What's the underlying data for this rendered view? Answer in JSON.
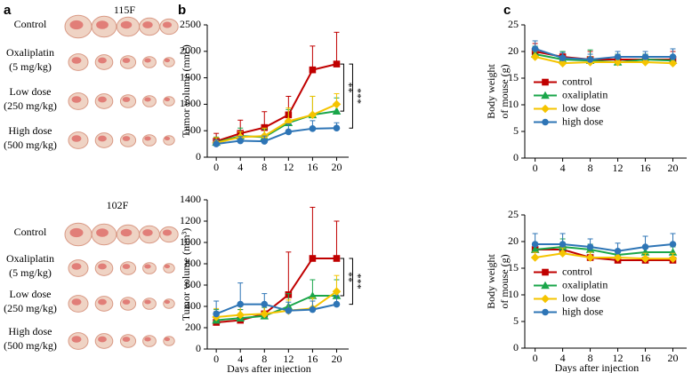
{
  "panel_labels": [
    "a",
    "b",
    "c"
  ],
  "photos": [
    {
      "title": "115F",
      "rows": [
        [
          "Control"
        ],
        [
          "Oxaliplatin",
          "(5 mg/kg)"
        ],
        [
          "Low dose",
          "(250 mg/kg)"
        ],
        [
          "High dose",
          "(500 mg/kg)"
        ]
      ]
    },
    {
      "title": "102F",
      "rows": [
        [
          "Control"
        ],
        [
          "Oxaliplatin",
          "(5 mg/kg)"
        ],
        [
          "Low dose",
          "(250 mg/kg)"
        ],
        [
          "High dose",
          "(500 mg/kg)"
        ]
      ]
    }
  ],
  "chart_data": [
    {
      "type": "line",
      "ylabel": [
        "Tumor volume (mm³)"
      ],
      "x": [
        0,
        4,
        8,
        12,
        16,
        20
      ],
      "xlim": [
        -1.5,
        22
      ],
      "xticks": [
        0,
        4,
        8,
        12,
        16,
        20
      ],
      "ylim": [
        0,
        2500
      ],
      "yticks": [
        0,
        500,
        1000,
        1500,
        2000,
        2500
      ],
      "annotations": [
        "**",
        "***"
      ],
      "legend": false,
      "series": [
        {
          "color": "#c00000",
          "marker": "square",
          "values": [
            300,
            450,
            560,
            800,
            1650,
            1760
          ],
          "errors": [
            150,
            250,
            300,
            350,
            450,
            600
          ]
        },
        {
          "color": "#1aa64a",
          "marker": "triangle",
          "values": [
            280,
            400,
            380,
            650,
            800,
            870
          ],
          "errors": [
            100,
            150,
            150,
            250,
            350,
            250
          ]
        },
        {
          "color": "#f5c400",
          "marker": "diamond",
          "values": [
            270,
            380,
            400,
            680,
            800,
            1000
          ],
          "errors": [
            100,
            100,
            150,
            250,
            350,
            200
          ]
        },
        {
          "color": "#2e75b6",
          "marker": "circle",
          "values": [
            250,
            310,
            300,
            480,
            540,
            550
          ],
          "errors": [
            80,
            80,
            100,
            150,
            150,
            100
          ]
        }
      ]
    },
    {
      "type": "line",
      "ylabel": [
        "Tumor volume (mm³)"
      ],
      "xlabel": "Days after injection",
      "x": [
        0,
        4,
        8,
        12,
        16,
        20
      ],
      "xlim": [
        -1.5,
        22
      ],
      "xticks": [
        0,
        4,
        8,
        12,
        16,
        20
      ],
      "ylim": [
        0,
        1400
      ],
      "yticks": [
        0,
        200,
        400,
        600,
        800,
        1000,
        1200,
        1400
      ],
      "annotations": [
        "**",
        "***"
      ],
      "legend": false,
      "series": [
        {
          "color": "#c00000",
          "marker": "square",
          "values": [
            250,
            270,
            330,
            510,
            850,
            850
          ],
          "errors": [
            100,
            100,
            100,
            400,
            480,
            350
          ]
        },
        {
          "color": "#1aa64a",
          "marker": "triangle",
          "values": [
            270,
            290,
            310,
            400,
            500,
            500
          ],
          "errors": [
            100,
            80,
            80,
            120,
            150,
            150
          ]
        },
        {
          "color": "#f5c400",
          "marker": "diamond",
          "values": [
            300,
            320,
            330,
            360,
            380,
            540
          ],
          "errors": [
            80,
            80,
            80,
            100,
            100,
            150
          ]
        },
        {
          "color": "#2e75b6",
          "marker": "circle",
          "values": [
            330,
            420,
            420,
            360,
            370,
            420
          ],
          "errors": [
            120,
            200,
            100,
            80,
            80,
            80
          ]
        }
      ]
    },
    {
      "type": "line",
      "ylabel": [
        "Body weight",
        "of mouse (g)"
      ],
      "x": [
        0,
        4,
        8,
        12,
        16,
        20
      ],
      "xlim": [
        -1.5,
        22
      ],
      "xticks": [
        0,
        4,
        8,
        12,
        16,
        20
      ],
      "ylim": [
        0,
        25
      ],
      "yticks": [
        0,
        5,
        10,
        15,
        20,
        25
      ],
      "legend": true,
      "legend_position": "center right",
      "series": [
        {
          "name": "control",
          "color": "#c00000",
          "marker": "square",
          "values": [
            20,
            19,
            18.5,
            18.5,
            18.5,
            18.5
          ],
          "errors": [
            1.5,
            1,
            1.5,
            1,
            1,
            1.5
          ]
        },
        {
          "name": "oxaliplatin",
          "color": "#1aa64a",
          "marker": "triangle",
          "values": [
            19.5,
            18.5,
            18.3,
            18,
            18.5,
            18.3
          ],
          "errors": [
            1.5,
            1.5,
            2,
            1.5,
            1,
            1
          ]
        },
        {
          "name": "low dose",
          "color": "#f5c400",
          "marker": "diamond",
          "values": [
            19,
            17.8,
            18,
            18,
            18,
            17.8
          ],
          "errors": [
            1,
            1,
            1,
            1,
            1,
            1
          ]
        },
        {
          "name": "high dose",
          "color": "#2e75b6",
          "marker": "circle",
          "values": [
            20.5,
            18.8,
            18.5,
            19,
            19,
            19
          ],
          "errors": [
            1.5,
            1,
            1,
            1,
            1,
            1.5
          ]
        }
      ]
    },
    {
      "type": "line",
      "ylabel": [
        "Body weight",
        "of mouse (g)"
      ],
      "xlabel": "Days after injection",
      "x": [
        0,
        4,
        8,
        12,
        16,
        20
      ],
      "xlim": [
        -1.5,
        22
      ],
      "xticks": [
        0,
        4,
        8,
        12,
        16,
        20
      ],
      "ylim": [
        0,
        25
      ],
      "yticks": [
        0,
        5,
        10,
        15,
        20,
        25
      ],
      "legend": true,
      "legend_position": "center right",
      "series": [
        {
          "name": "control",
          "color": "#c00000",
          "marker": "square",
          "values": [
            18.5,
            18.5,
            17,
            16.5,
            16.5,
            16.5
          ],
          "errors": [
            1,
            1,
            1,
            1,
            1,
            1
          ]
        },
        {
          "name": "oxaliplatin",
          "color": "#1aa64a",
          "marker": "triangle",
          "values": [
            18.5,
            19,
            18.5,
            17.5,
            18,
            18
          ],
          "errors": [
            1,
            1.5,
            1,
            1,
            1,
            1
          ]
        },
        {
          "name": "low dose",
          "color": "#f5c400",
          "marker": "diamond",
          "values": [
            17,
            17.8,
            17,
            17,
            16.8,
            16.8
          ],
          "errors": [
            1,
            1,
            1,
            1,
            1,
            1
          ]
        },
        {
          "name": "high dose",
          "color": "#2e75b6",
          "marker": "circle",
          "values": [
            19.5,
            19.5,
            19,
            18.2,
            19,
            19.5
          ],
          "errors": [
            2,
            2,
            1.5,
            1.5,
            2,
            2
          ]
        }
      ]
    }
  ]
}
